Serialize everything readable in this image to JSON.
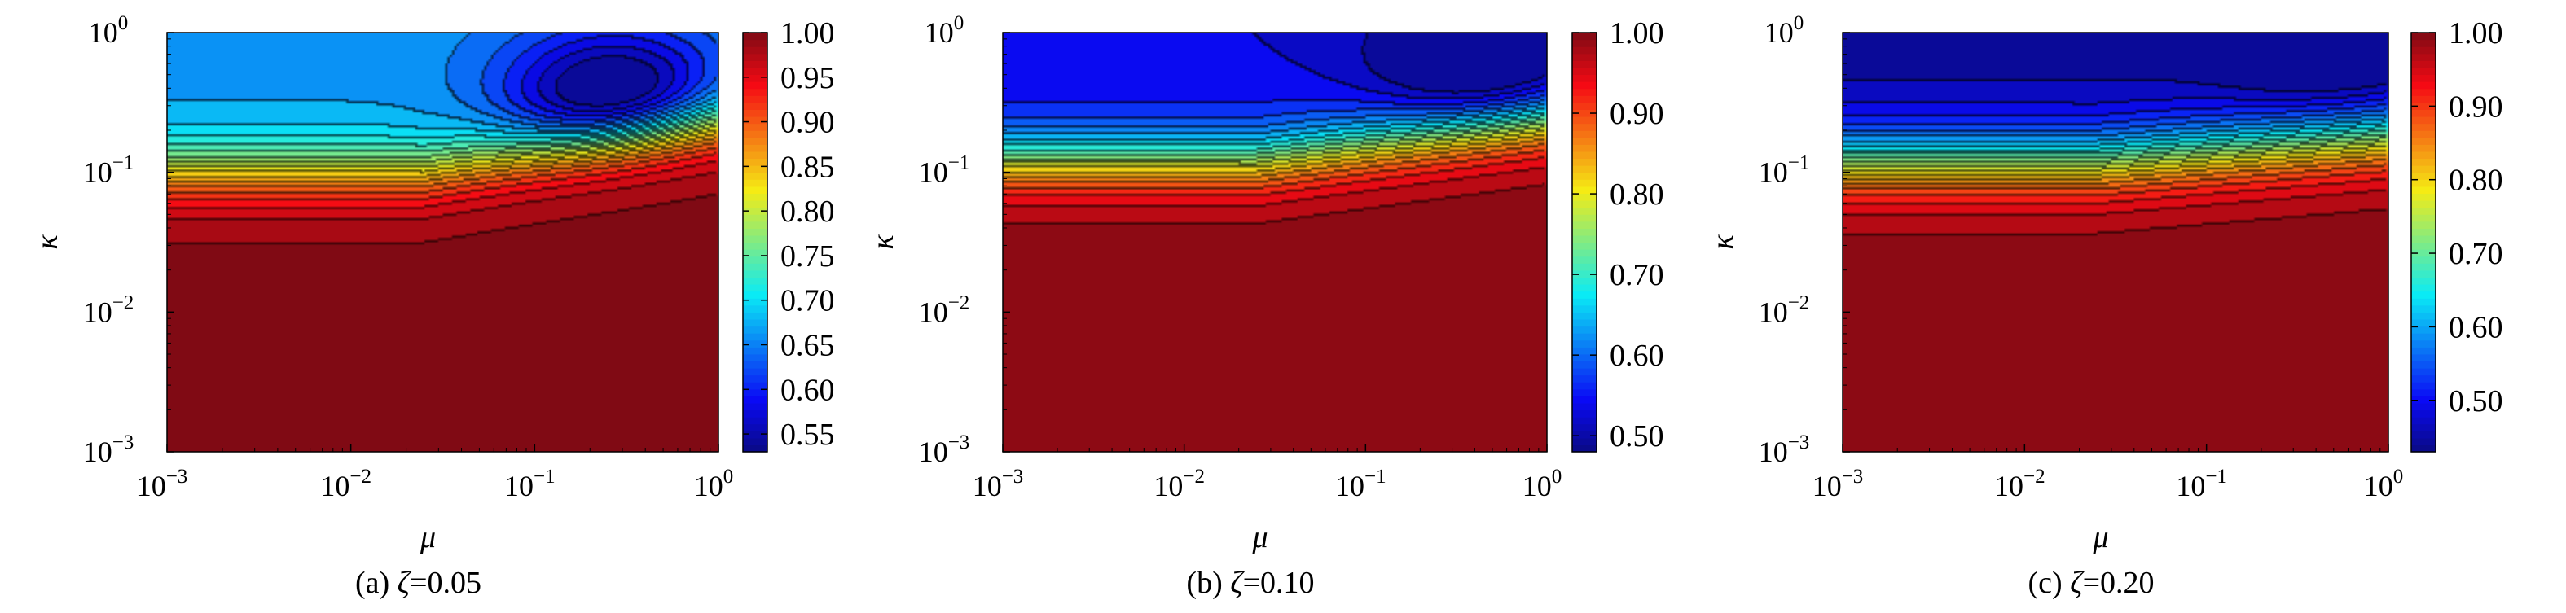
{
  "chart_data": [
    {
      "type": "contour",
      "caption_prefix": "(a) ",
      "caption_symbol": "ζ",
      "caption_value": "=0.05",
      "xlabel": "μ",
      "ylabel": "κ",
      "xscale": "log",
      "yscale": "log",
      "xlim": [
        0.001,
        1
      ],
      "ylim": [
        0.001,
        1
      ],
      "x_ticks": [
        {
          "base": "10",
          "exp": "−3"
        },
        {
          "base": "10",
          "exp": "−2"
        },
        {
          "base": "10",
          "exp": "−1"
        },
        {
          "base": "10",
          "exp": "0"
        }
      ],
      "y_ticks": [
        {
          "base": "10",
          "exp": "−3"
        },
        {
          "base": "10",
          "exp": "−2"
        },
        {
          "base": "10",
          "exp": "−1"
        },
        {
          "base": "10",
          "exp": "0"
        }
      ],
      "colorbar": {
        "min": 0.53,
        "max": 1.0,
        "ticks": [
          "0.55",
          "0.60",
          "0.65",
          "0.70",
          "0.75",
          "0.80",
          "0.85",
          "0.90",
          "0.95",
          "1.00"
        ],
        "tick_values": [
          0.55,
          0.6,
          0.65,
          0.7,
          0.75,
          0.8,
          0.85,
          0.9,
          0.95,
          1.0
        ],
        "colormap": "jet"
      },
      "field": {
        "plateau_value": 0.66,
        "transition_kappa": 0.1,
        "transition_width_decades": 0.32,
        "transition_shift_per_decade_mu": 0.1,
        "min_value": 0.53,
        "min_at_mu": 0.28,
        "min_at_kappa": 0.3,
        "low_corner_value": 1.0,
        "level_step": 0.02,
        "outline_levels": [
          0.6,
          0.97
        ]
      }
    },
    {
      "type": "contour",
      "caption_prefix": "(b) ",
      "caption_symbol": "ζ",
      "caption_value": "=0.10",
      "xlabel": "μ",
      "ylabel": "κ",
      "xscale": "log",
      "yscale": "log",
      "xlim": [
        0.001,
        1
      ],
      "ylim": [
        0.001,
        1
      ],
      "x_ticks": [
        {
          "base": "10",
          "exp": "−3"
        },
        {
          "base": "10",
          "exp": "−2"
        },
        {
          "base": "10",
          "exp": "−1"
        },
        {
          "base": "10",
          "exp": "0"
        }
      ],
      "y_ticks": [
        {
          "base": "10",
          "exp": "−3"
        },
        {
          "base": "10",
          "exp": "−2"
        },
        {
          "base": "10",
          "exp": "−1"
        },
        {
          "base": "10",
          "exp": "0"
        }
      ],
      "colorbar": {
        "min": 0.48,
        "max": 1.0,
        "ticks": [
          "0.50",
          "0.60",
          "0.70",
          "0.80",
          "0.90",
          "1.00"
        ],
        "tick_values": [
          0.5,
          0.6,
          0.7,
          0.8,
          0.9,
          1.0
        ],
        "colormap": "jet"
      },
      "field": {
        "plateau_value": 0.53,
        "transition_kappa": 0.12,
        "transition_width_decades": 0.32,
        "transition_shift_per_decade_mu": 0.08,
        "min_value": 0.48,
        "min_at_mu": 0.45,
        "min_at_kappa": 0.55,
        "low_corner_value": 1.0,
        "level_step": 0.025,
        "outline_levels": [
          0.98
        ]
      }
    },
    {
      "type": "contour",
      "caption_prefix": "(c) ",
      "caption_symbol": "ζ",
      "caption_value": "=0.20",
      "xlabel": "μ",
      "ylabel": "κ",
      "xscale": "log",
      "yscale": "log",
      "xlim": [
        0.001,
        1
      ],
      "ylim": [
        0.001,
        1
      ],
      "x_ticks": [
        {
          "base": "10",
          "exp": "−3"
        },
        {
          "base": "10",
          "exp": "−2"
        },
        {
          "base": "10",
          "exp": "−1"
        },
        {
          "base": "10",
          "exp": "0"
        }
      ],
      "y_ticks": [
        {
          "base": "10",
          "exp": "−3"
        },
        {
          "base": "10",
          "exp": "−2"
        },
        {
          "base": "10",
          "exp": "−1"
        },
        {
          "base": "10",
          "exp": "0"
        }
      ],
      "colorbar": {
        "min": 0.43,
        "max": 1.0,
        "ticks": [
          "0.50",
          "0.60",
          "0.70",
          "0.80",
          "0.90",
          "1.00"
        ],
        "tick_values": [
          0.5,
          0.6,
          0.7,
          0.8,
          0.9,
          1.0
        ],
        "colormap": "jet"
      },
      "field": {
        "plateau_value": 0.44,
        "transition_kappa": 0.12,
        "transition_width_decades": 0.35,
        "transition_shift_per_decade_mu": 0.05,
        "min_value": 0.43,
        "min_at_mu": 0.5,
        "min_at_kappa": 0.85,
        "low_corner_value": 1.0,
        "level_step": 0.025,
        "outline_levels": [
          0.99
        ]
      }
    }
  ]
}
